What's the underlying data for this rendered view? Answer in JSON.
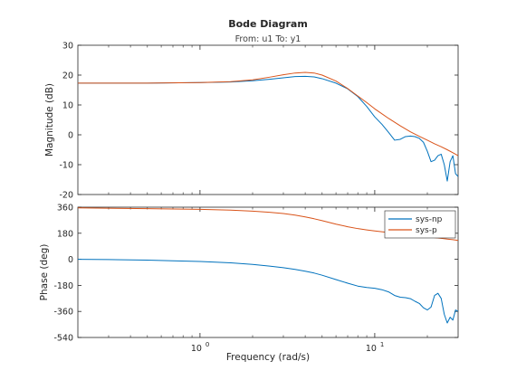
{
  "chart_data": {
    "type": "line",
    "title": "Bode Diagram",
    "subtitle": "From: u1  To: y1",
    "xlabel": "Frequency  (rad/s)",
    "xscale": "log",
    "xlim": [
      0.2,
      30
    ],
    "xticks": [
      {
        "value": 1,
        "base": "10",
        "exp": "0"
      },
      {
        "value": 10,
        "base": "10",
        "exp": "1"
      }
    ],
    "colors": {
      "sys-np": "#0072bd",
      "sys-p": "#d95319",
      "axes": "#262626"
    },
    "legend": {
      "position": "top-right",
      "entries": [
        "sys-np",
        "sys-p"
      ]
    },
    "panels": [
      {
        "id": "magnitude",
        "ylabel": "Magnitude (dB)",
        "ylim": [
          -20,
          30
        ],
        "yticks": [
          -20,
          -10,
          0,
          10,
          20,
          30
        ],
        "series": [
          {
            "name": "sys-np",
            "points": [
              [
                0.2,
                17.3
              ],
              [
                0.5,
                17.3
              ],
              [
                1,
                17.5
              ],
              [
                1.5,
                17.7
              ],
              [
                2,
                18.1
              ],
              [
                2.5,
                18.6
              ],
              [
                3,
                19.1
              ],
              [
                3.5,
                19.5
              ],
              [
                4,
                19.6
              ],
              [
                4.5,
                19.4
              ],
              [
                5,
                18.8
              ],
              [
                6,
                17.3
              ],
              [
                7,
                15.4
              ],
              [
                8,
                12.8
              ],
              [
                9,
                9.5
              ],
              [
                10,
                6
              ],
              [
                11,
                3.5
              ],
              [
                12,
                0.8
              ],
              [
                13,
                -1.8
              ],
              [
                14,
                -1.5
              ],
              [
                15,
                -0.6
              ],
              [
                16,
                -0.4
              ],
              [
                17,
                -0.6
              ],
              [
                18,
                -1.2
              ],
              [
                19,
                -2.5
              ],
              [
                20,
                -5.5
              ],
              [
                21,
                -9
              ],
              [
                22,
                -8.5
              ],
              [
                23,
                -7
              ],
              [
                24,
                -6.5
              ],
              [
                25,
                -10
              ],
              [
                26,
                -15.5
              ],
              [
                27,
                -9
              ],
              [
                28,
                -7
              ],
              [
                29,
                -13
              ],
              [
                30,
                -14
              ]
            ]
          },
          {
            "name": "sys-p",
            "points": [
              [
                0.2,
                17.3
              ],
              [
                0.5,
                17.3
              ],
              [
                1,
                17.5
              ],
              [
                1.5,
                17.8
              ],
              [
                2,
                18.4
              ],
              [
                2.5,
                19.3
              ],
              [
                3,
                20.1
              ],
              [
                3.5,
                20.7
              ],
              [
                4,
                20.9
              ],
              [
                4.5,
                20.7
              ],
              [
                5,
                20
              ],
              [
                6,
                18
              ],
              [
                7,
                15.5
              ],
              [
                8,
                13
              ],
              [
                9,
                10.8
              ],
              [
                10,
                8.7
              ],
              [
                12,
                5.5
              ],
              [
                14,
                3
              ],
              [
                16,
                1
              ],
              [
                18,
                -0.5
              ],
              [
                20,
                -1.8
              ],
              [
                22,
                -3
              ],
              [
                24,
                -4
              ],
              [
                26,
                -5
              ],
              [
                28,
                -6
              ],
              [
                30,
                -7
              ]
            ]
          }
        ]
      },
      {
        "id": "phase",
        "ylabel": "Phase (deg)",
        "ylim": [
          -540,
          360
        ],
        "yticks": [
          -540,
          -360,
          -180,
          0,
          180,
          360
        ],
        "series": [
          {
            "name": "sys-np",
            "points": [
              [
                0.2,
                0
              ],
              [
                0.3,
                -2
              ],
              [
                0.5,
                -6
              ],
              [
                0.7,
                -10
              ],
              [
                1,
                -15
              ],
              [
                1.5,
                -24
              ],
              [
                2,
                -35
              ],
              [
                2.5,
                -47
              ],
              [
                3,
                -58
              ],
              [
                3.5,
                -70
              ],
              [
                4,
                -82
              ],
              [
                4.5,
                -95
              ],
              [
                5,
                -110
              ],
              [
                6,
                -140
              ],
              [
                7,
                -165
              ],
              [
                8,
                -185
              ],
              [
                9,
                -195
              ],
              [
                10,
                -200
              ],
              [
                11,
                -210
              ],
              [
                12,
                -225
              ],
              [
                13,
                -250
              ],
              [
                14,
                -262
              ],
              [
                15,
                -265
              ],
              [
                16,
                -272
              ],
              [
                17,
                -290
              ],
              [
                18,
                -305
              ],
              [
                19,
                -335
              ],
              [
                20,
                -350
              ],
              [
                21,
                -330
              ],
              [
                22,
                -250
              ],
              [
                23,
                -235
              ],
              [
                24,
                -270
              ],
              [
                25,
                -380
              ],
              [
                26,
                -440
              ],
              [
                27,
                -400
              ],
              [
                28,
                -420
              ],
              [
                29,
                -350
              ],
              [
                30,
                -360
              ]
            ]
          },
          {
            "name": "sys-p",
            "points": [
              [
                0.2,
                355
              ],
              [
                0.5,
                350
              ],
              [
                1,
                345
              ],
              [
                1.5,
                340
              ],
              [
                2,
                333
              ],
              [
                2.5,
                325
              ],
              [
                3,
                316
              ],
              [
                3.5,
                305
              ],
              [
                4,
                293
              ],
              [
                4.5,
                280
              ],
              [
                5,
                267
              ],
              [
                6,
                243
              ],
              [
                7,
                225
              ],
              [
                8,
                212
              ],
              [
                9,
                203
              ],
              [
                10,
                196
              ],
              [
                12,
                185
              ],
              [
                14,
                177
              ],
              [
                16,
                170
              ],
              [
                18,
                164
              ],
              [
                20,
                158
              ],
              [
                22,
                150
              ],
              [
                24,
                145
              ],
              [
                26,
                140
              ],
              [
                28,
                136
              ],
              [
                30,
                130
              ]
            ]
          }
        ]
      }
    ]
  }
}
